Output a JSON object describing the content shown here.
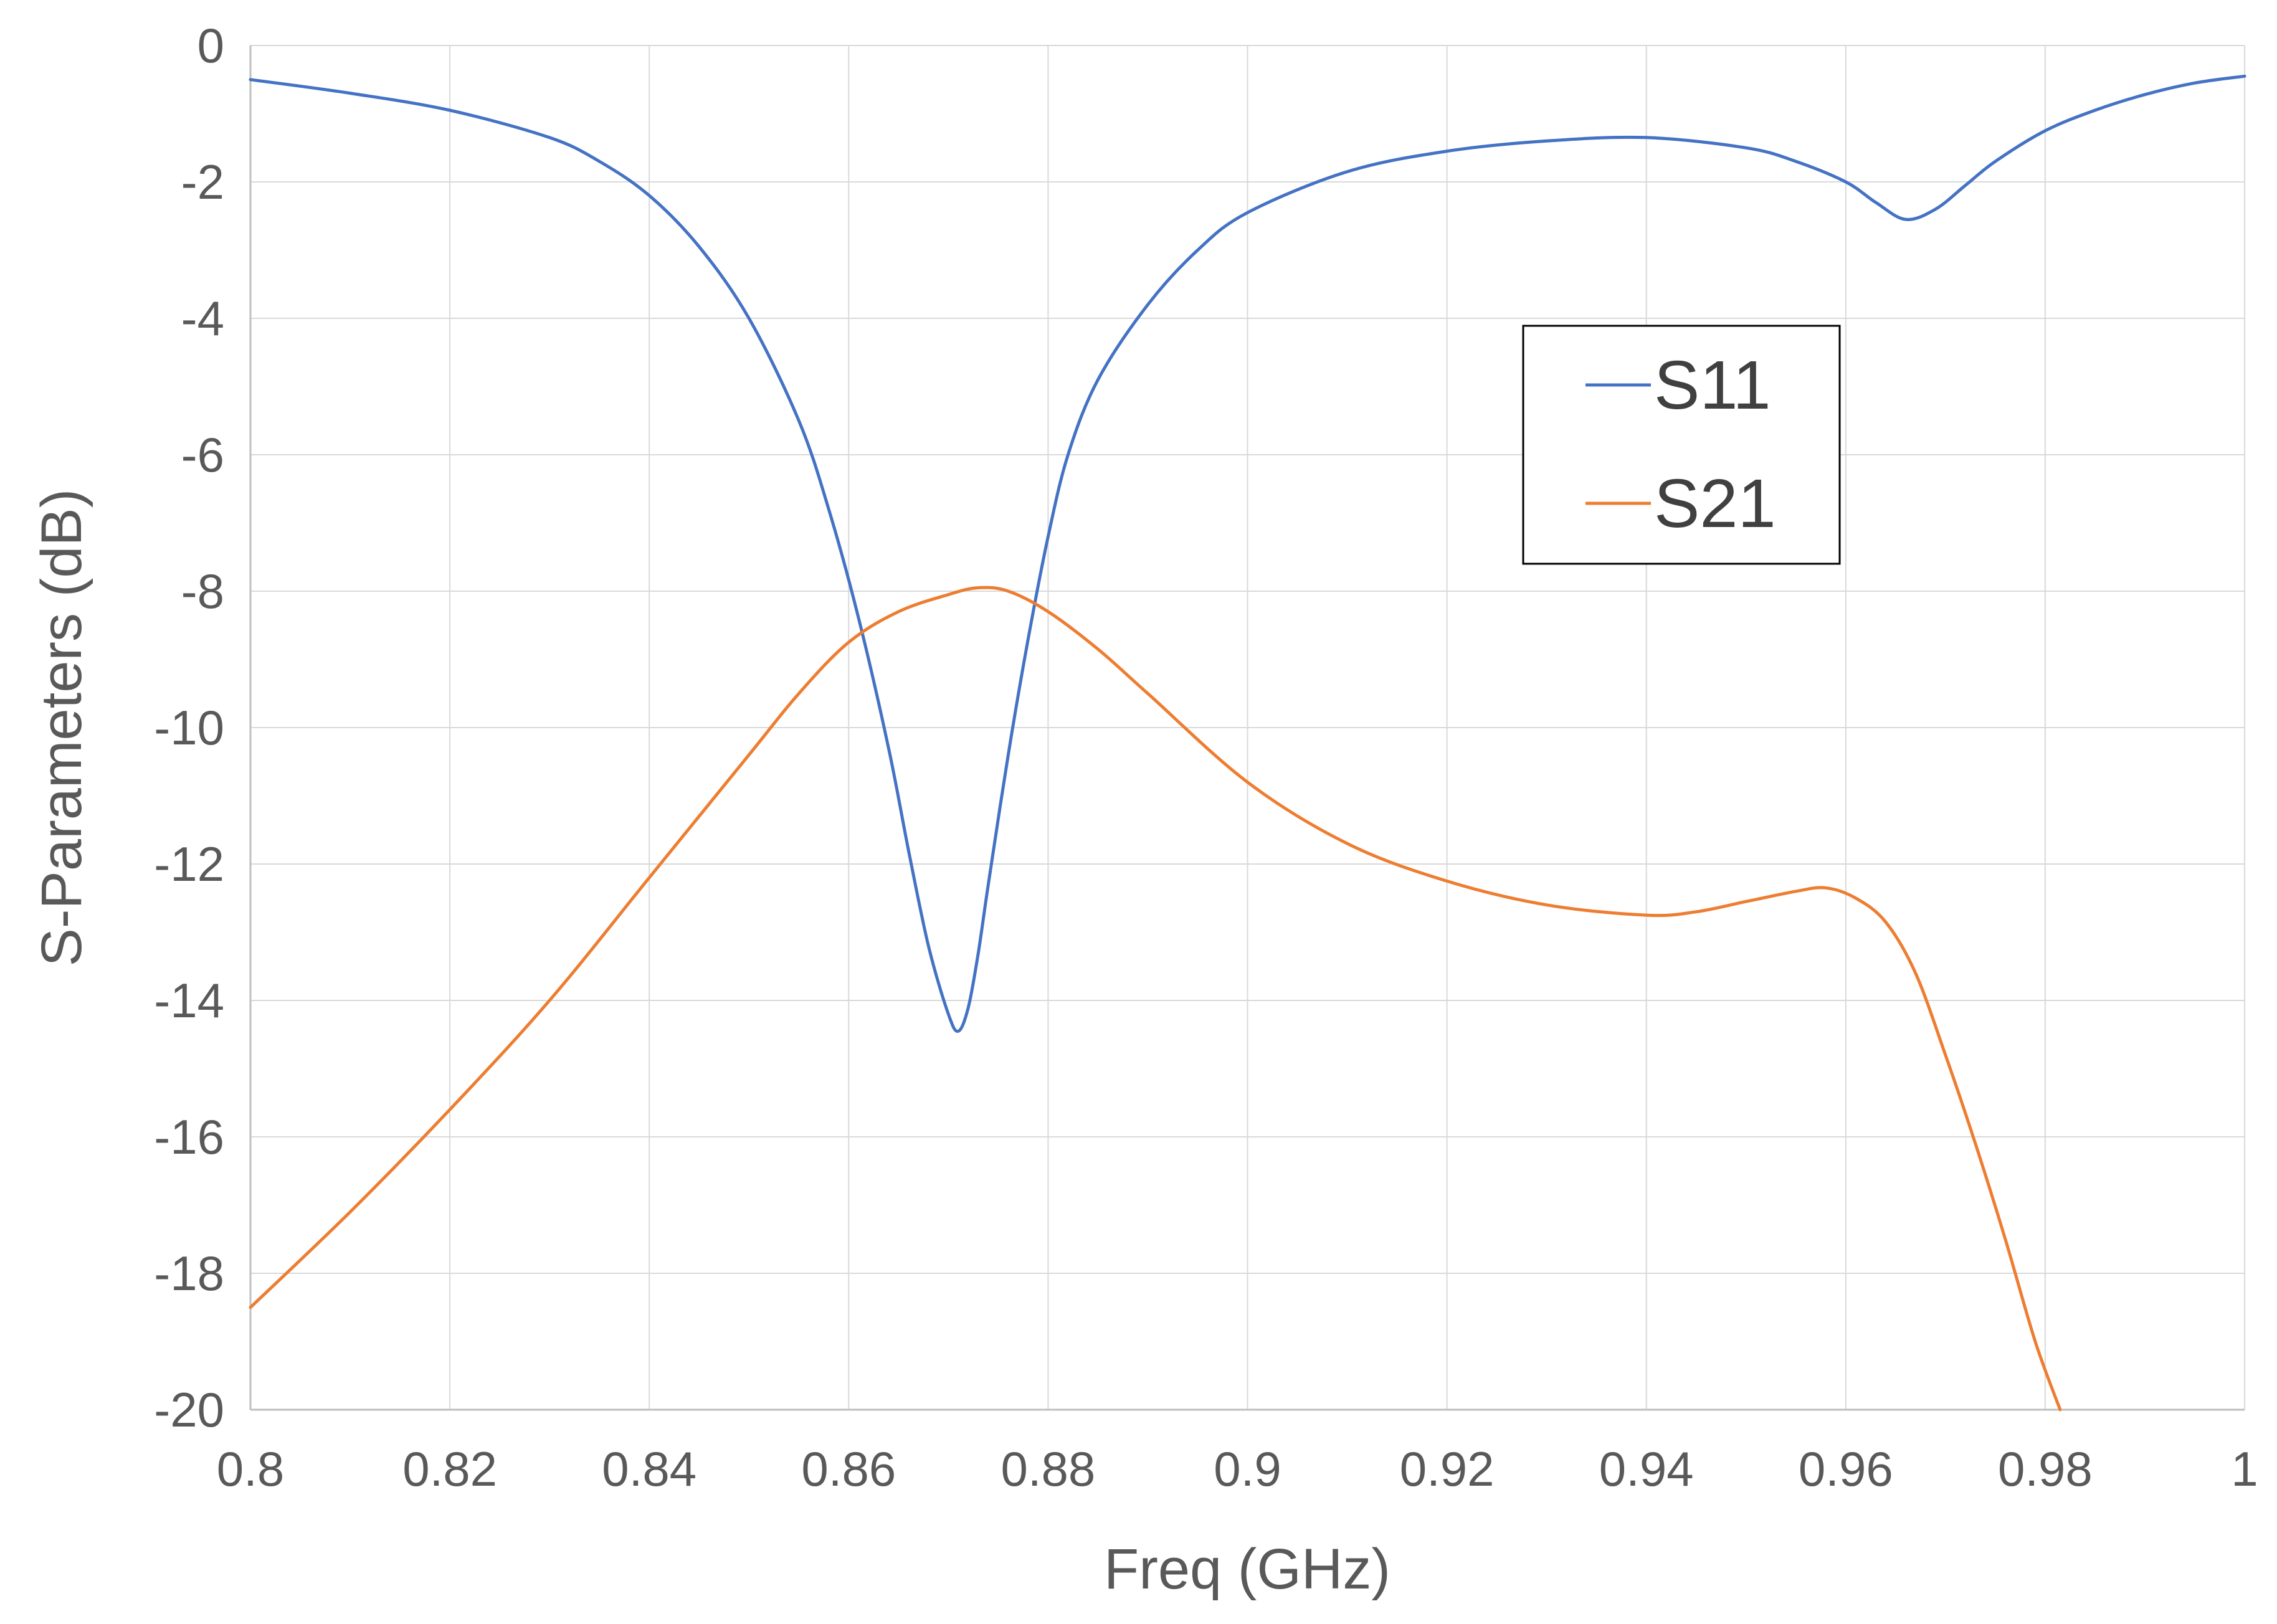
{
  "chart_data": {
    "type": "line",
    "title": "",
    "xlabel": "Freq (GHz)",
    "ylabel": "S-Parameters (dB)",
    "xlim": [
      0.8,
      1.0
    ],
    "ylim": [
      -20,
      0
    ],
    "xticks": [
      0.8,
      0.82,
      0.84,
      0.86,
      0.88,
      0.9,
      0.92,
      0.94,
      0.96,
      0.98,
      1.0
    ],
    "xtick_labels": [
      "0.8",
      "0.82",
      "0.84",
      "0.86",
      "0.88",
      "0.9",
      "0.92",
      "0.94",
      "0.96",
      "0.98",
      "1"
    ],
    "yticks": [
      0,
      -2,
      -4,
      -6,
      -8,
      -10,
      -12,
      -14,
      -16,
      -18,
      -20
    ],
    "ytick_labels": [
      "0",
      "-2",
      "-4",
      "-6",
      "-8",
      "-10",
      "-12",
      "-14",
      "-16",
      "-18",
      "-20"
    ],
    "grid": true,
    "legend_position": "upper-right-inside",
    "series": [
      {
        "name": "S11",
        "color": "#4472C4",
        "x": [
          0.8,
          0.81,
          0.82,
          0.83,
          0.835,
          0.84,
          0.845,
          0.85,
          0.855,
          0.858,
          0.861,
          0.864,
          0.866,
          0.868,
          0.87,
          0.871,
          0.872,
          0.873,
          0.874,
          0.876,
          0.878,
          0.88,
          0.882,
          0.885,
          0.89,
          0.895,
          0.9,
          0.91,
          0.92,
          0.93,
          0.94,
          0.95,
          0.955,
          0.96,
          0.963,
          0.966,
          0.969,
          0.972,
          0.975,
          0.98,
          0.985,
          0.99,
          0.995,
          1.0
        ],
        "y": [
          -0.5,
          -0.7,
          -0.95,
          -1.35,
          -1.7,
          -2.2,
          -2.95,
          -4.0,
          -5.5,
          -6.8,
          -8.4,
          -10.3,
          -11.8,
          -13.2,
          -14.2,
          -14.45,
          -14.1,
          -13.3,
          -12.3,
          -10.4,
          -8.7,
          -7.2,
          -6.0,
          -4.9,
          -3.8,
          -3.0,
          -2.45,
          -1.85,
          -1.55,
          -1.4,
          -1.35,
          -1.5,
          -1.7,
          -2.0,
          -2.3,
          -2.55,
          -2.4,
          -2.05,
          -1.7,
          -1.25,
          -0.95,
          -0.72,
          -0.55,
          -0.45
        ]
      },
      {
        "name": "S21",
        "color": "#ED7D31",
        "x": [
          0.8,
          0.81,
          0.82,
          0.83,
          0.84,
          0.85,
          0.855,
          0.86,
          0.865,
          0.87,
          0.873,
          0.876,
          0.88,
          0.885,
          0.89,
          0.9,
          0.91,
          0.92,
          0.93,
          0.94,
          0.945,
          0.95,
          0.955,
          0.958,
          0.961,
          0.964,
          0.967,
          0.97,
          0.973,
          0.976,
          0.979,
          0.9815
        ],
        "y": [
          -18.5,
          -17.1,
          -15.6,
          -14.0,
          -12.2,
          -10.4,
          -9.5,
          -8.75,
          -8.3,
          -8.05,
          -7.95,
          -8.0,
          -8.3,
          -8.85,
          -9.5,
          -10.8,
          -11.7,
          -12.25,
          -12.6,
          -12.75,
          -12.7,
          -12.55,
          -12.4,
          -12.35,
          -12.5,
          -12.85,
          -13.6,
          -14.8,
          -16.1,
          -17.5,
          -19.0,
          -20.0
        ]
      }
    ]
  }
}
